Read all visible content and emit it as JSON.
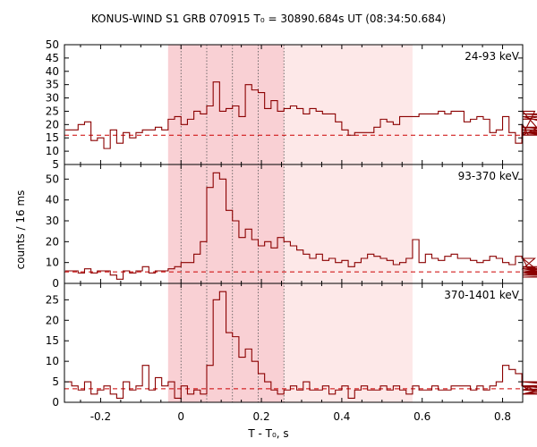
{
  "title": "KONUS-WIND S1 GRB 070915 T₀ = 30890.684s UT (08:34:50.684)",
  "xlabel": "T - T₀, s",
  "ylabel": "counts / 16 ms",
  "colors": {
    "step": "#8b0000",
    "background_line": "#cc0000",
    "light_shade": "#fde8e8",
    "dark_shade": "#f9d0d4",
    "axis": "#000000"
  },
  "chart_data": {
    "type": "line",
    "step": true,
    "xlim": [
      -0.29,
      0.85
    ],
    "xticks": [
      -0.2,
      0,
      0.2,
      0.4,
      0.6,
      0.8
    ],
    "x_tick_labels": [
      "-0.2",
      "0",
      "0.2",
      "0.4",
      "0.6",
      "0.8"
    ],
    "shaded_regions": [
      {
        "from": -0.032,
        "to": 0.576,
        "shade": "light"
      },
      {
        "from": -0.032,
        "to": 0.256,
        "shade": "dark"
      }
    ],
    "vertical_dotted_lines": [
      0.0,
      0.064,
      0.128,
      0.192,
      0.256
    ],
    "bin_width": 0.016,
    "x_start": -0.288,
    "panels": [
      {
        "energy_label": "24-93 keV",
        "ylim": [
          5,
          50
        ],
        "yticks": [
          5,
          10,
          15,
          20,
          25,
          30,
          35,
          40,
          45,
          50
        ],
        "background_level": 16,
        "values": [
          18,
          18,
          20,
          21,
          14,
          15,
          11,
          18,
          13,
          17,
          15,
          17,
          18,
          18,
          19,
          18,
          22,
          23,
          20,
          22,
          25,
          24,
          27,
          36,
          25,
          26,
          27,
          23,
          35,
          33,
          32,
          26,
          29,
          25,
          26,
          27,
          26,
          24,
          26,
          25,
          24,
          24,
          21,
          18,
          16,
          17,
          17,
          17,
          19,
          22,
          21,
          20,
          23,
          23,
          23,
          24,
          24,
          24,
          25,
          24,
          25,
          25,
          21,
          22,
          23,
          22,
          17,
          18,
          23,
          17,
          13,
          20,
          16,
          25,
          17,
          16,
          22,
          24,
          23,
          18,
          17,
          19,
          17,
          16,
          16,
          17,
          17,
          16,
          18,
          16,
          16,
          16,
          16,
          16
        ]
      },
      {
        "energy_label": "93-370 keV",
        "ylim": [
          0,
          57
        ],
        "yticks": [
          0,
          10,
          20,
          30,
          40,
          50
        ],
        "background_level": 5.5,
        "values": [
          6,
          6,
          5,
          7,
          5,
          6,
          6,
          4,
          2,
          6,
          5,
          6,
          8,
          5,
          6,
          6,
          7,
          8,
          10,
          10,
          14,
          20,
          46,
          53,
          50,
          35,
          30,
          22,
          26,
          21,
          18,
          20,
          17,
          22,
          20,
          18,
          16,
          14,
          12,
          14,
          11,
          12,
          10,
          11,
          8,
          10,
          12,
          14,
          13,
          12,
          11,
          9,
          10,
          12,
          21,
          10,
          14,
          12,
          11,
          13,
          14,
          12,
          12,
          11,
          10,
          11,
          13,
          12,
          10,
          9,
          13,
          12,
          7,
          12,
          5,
          8,
          5,
          7,
          4,
          8,
          5,
          6,
          4,
          7,
          5,
          4,
          6,
          5,
          6,
          5,
          4,
          3,
          5,
          6
        ]
      },
      {
        "energy_label": "370-1401 keV",
        "ylim": [
          0,
          29
        ],
        "yticks": [
          0,
          5,
          10,
          15,
          20,
          25
        ],
        "background_level": 3.3,
        "values": [
          5,
          4,
          3,
          5,
          2,
          3,
          4,
          2,
          1,
          5,
          3,
          4,
          9,
          3,
          6,
          4,
          5,
          1,
          4,
          2,
          3,
          2,
          9,
          25,
          27,
          17,
          16,
          11,
          13,
          10,
          7,
          5,
          3,
          2,
          3,
          4,
          3,
          5,
          3,
          3,
          4,
          2,
          3,
          4,
          1,
          3,
          4,
          3,
          3,
          4,
          3,
          4,
          3,
          2,
          4,
          3,
          3,
          4,
          3,
          3,
          4,
          4,
          4,
          3,
          4,
          3,
          4,
          5,
          9,
          8,
          7,
          4,
          3,
          4,
          4,
          2,
          4,
          3,
          3,
          3,
          4,
          3,
          3,
          2,
          5,
          3,
          4,
          2,
          3,
          4,
          3,
          4,
          5,
          4
        ]
      }
    ]
  }
}
